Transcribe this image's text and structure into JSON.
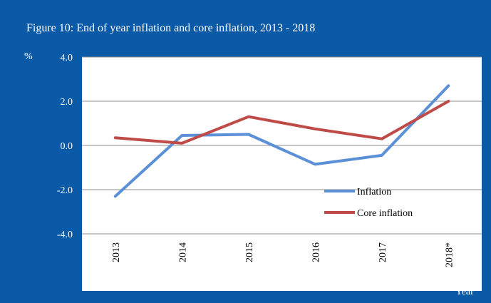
{
  "chart_data": {
    "type": "line",
    "title": "Figure 10: End of year inflation and core inflation, 2013 - 2018",
    "ylabel": "%",
    "xlabel": "Year",
    "categories": [
      "2013",
      "2014",
      "2015",
      "2016",
      "2017",
      "2018*"
    ],
    "y_ticks": [
      "4.0",
      "2.0",
      "0.0",
      "-2.0",
      "-4.0"
    ],
    "ylim": [
      -4.0,
      4.0
    ],
    "grid": true,
    "legend_position": "bottom-right",
    "series": [
      {
        "name": "Inflation",
        "values": [
          -2.3,
          0.45,
          0.5,
          -0.85,
          -0.45,
          2.7
        ],
        "color": "#5b8fd6"
      },
      {
        "name": "Core inflation",
        "values": [
          0.35,
          0.1,
          1.3,
          0.75,
          0.3,
          2.0
        ],
        "color": "#be4b48"
      }
    ],
    "colors": {
      "frame": "#0b5aa8",
      "plot_bg": "#ffffff",
      "grid": "#8c8c8c"
    }
  }
}
